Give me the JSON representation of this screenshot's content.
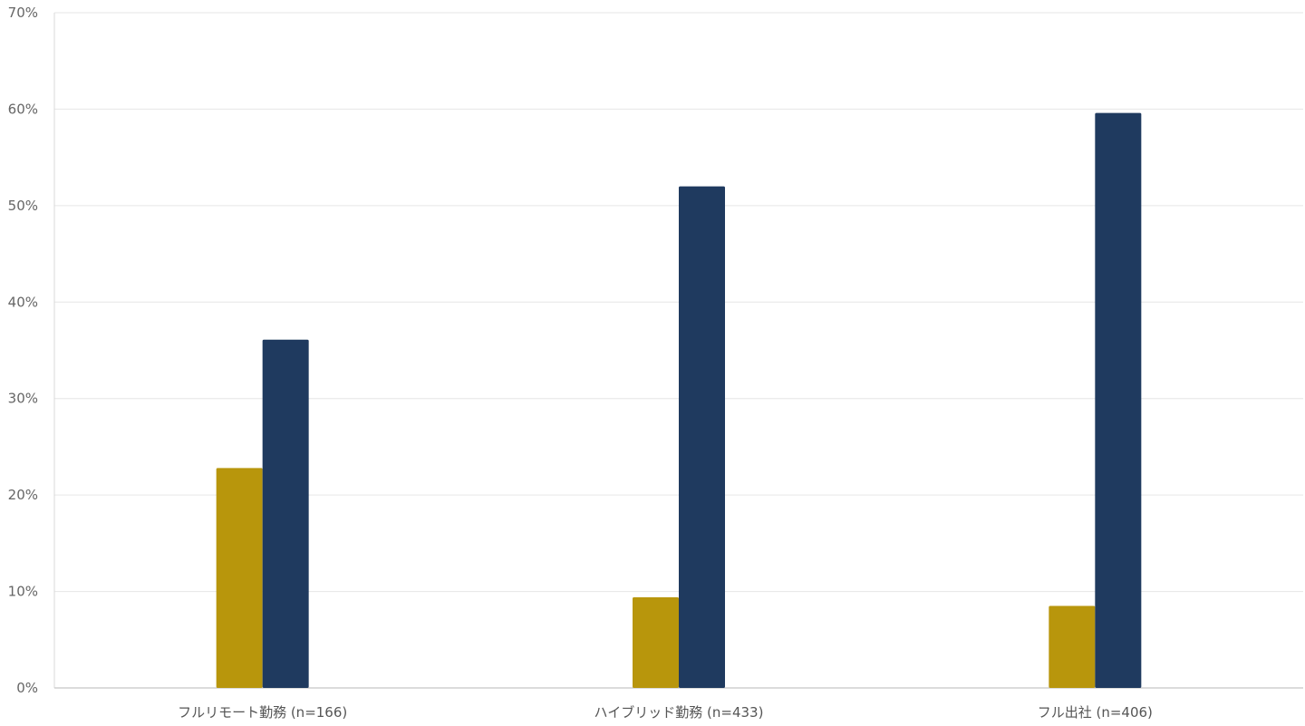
{
  "chart_data": {
    "type": "bar",
    "title": "",
    "xlabel": "",
    "ylabel": "",
    "categories": [
      "フルリモート勤務 (n=166)",
      "ハイブリッド勤務 (n=433)",
      "フル出社 (n=406)"
    ],
    "series": [
      {
        "values": [
          22.8,
          9.4,
          8.5
        ],
        "color": "#b8960c"
      },
      {
        "values": [
          36.1,
          52.0,
          59.6
        ],
        "color": "#1f3a5f"
      }
    ],
    "ylim": [
      0,
      70
    ],
    "yticks": [
      0,
      10,
      20,
      30,
      40,
      50,
      60,
      70
    ],
    "ytick_labels": [
      "0%",
      "10%",
      "20%",
      "30%",
      "40%",
      "50%",
      "60%",
      "70%"
    ],
    "grid": true,
    "legend": "none"
  }
}
